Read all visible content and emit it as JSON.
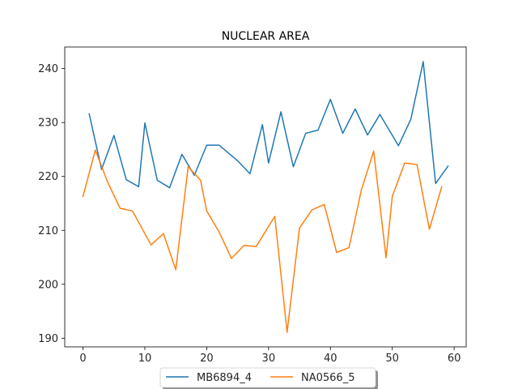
{
  "chart_data": {
    "type": "line",
    "title": "NUCLEAR AREA",
    "xlabel": "",
    "ylabel": "",
    "xlim": [
      -2.95,
      61.95
    ],
    "ylim": [
      188.4,
      244.0
    ],
    "xticks": [
      0,
      10,
      20,
      30,
      40,
      50,
      60
    ],
    "yticks": [
      190,
      200,
      210,
      220,
      230,
      240
    ],
    "grid": false,
    "legend": {
      "placement": "bottom-center, below axes"
    },
    "series": [
      {
        "name": "MB6894_4",
        "color": "#1f77b4",
        "x": [
          1,
          3,
          5,
          7,
          9,
          10,
          12,
          14,
          16,
          18,
          20,
          22,
          25,
          27,
          29,
          30,
          32,
          34,
          36,
          38,
          40,
          42,
          44,
          46,
          48,
          51,
          53,
          55,
          57,
          59
        ],
        "y": [
          231.6,
          221.3,
          227.6,
          219.4,
          218.1,
          229.9,
          219.3,
          217.9,
          224.1,
          220.2,
          225.8,
          225.8,
          222.9,
          220.5,
          229.6,
          222.5,
          232.0,
          221.8,
          228.0,
          228.6,
          234.3,
          228.0,
          232.5,
          227.7,
          231.5,
          225.7,
          230.6,
          241.3,
          218.7,
          221.9
        ]
      },
      {
        "name": "NA0566_5",
        "color": "#ff7f0e",
        "x": [
          0,
          2,
          4,
          6,
          8,
          11,
          13,
          15,
          17,
          19,
          20,
          22,
          24,
          26,
          28,
          31,
          33,
          35,
          37,
          39,
          41,
          43,
          45,
          47,
          49,
          50,
          52,
          54,
          56,
          58
        ],
        "y": [
          216.3,
          224.9,
          218.9,
          214.1,
          213.6,
          207.3,
          209.4,
          202.7,
          221.8,
          219.3,
          213.6,
          209.7,
          204.8,
          207.2,
          207.0,
          212.6,
          191.1,
          210.4,
          213.8,
          214.8,
          205.9,
          206.8,
          217.5,
          224.7,
          204.9,
          216.3,
          222.5,
          222.2,
          210.2,
          218.1
        ]
      }
    ]
  }
}
